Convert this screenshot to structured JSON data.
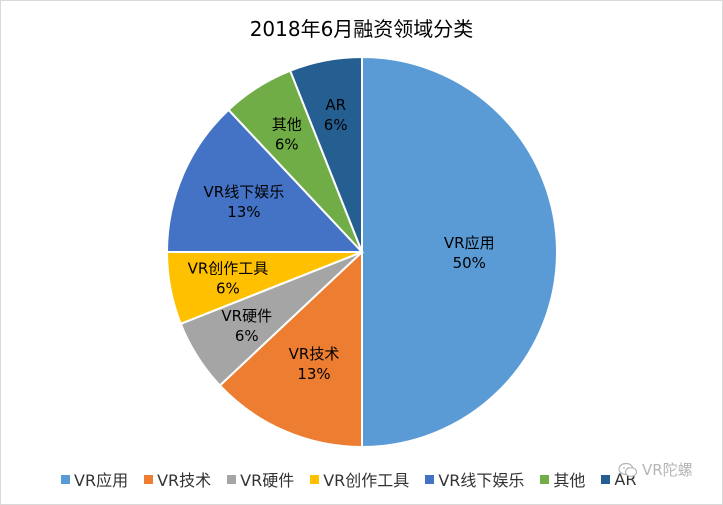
{
  "chart_data": {
    "type": "pie",
    "title": "2018年6月融资领域分类",
    "categories": [
      "VR应用",
      "VR技术",
      "VR硬件",
      "VR创作工具",
      "VR线下娱乐",
      "其他",
      "AR"
    ],
    "values": [
      50,
      13,
      6,
      6,
      13,
      6,
      6
    ],
    "value_labels": [
      "50%",
      "13%",
      "6%",
      "6%",
      "13%",
      "6%",
      "6%"
    ],
    "colors": [
      "#5b9bd5",
      "#ed7d31",
      "#a5a5a5",
      "#ffc000",
      "#4472c4",
      "#70ad47",
      "#255e91"
    ],
    "label_colors": [
      "#000000",
      "#000000",
      "#000000",
      "#000000",
      "#000000",
      "#000000",
      "#000000"
    ],
    "start_angle_deg": 0,
    "direction": "clockwise",
    "legend_position": "bottom"
  },
  "watermark": {
    "text": "VR陀螺",
    "icon": "wechat-icon"
  }
}
